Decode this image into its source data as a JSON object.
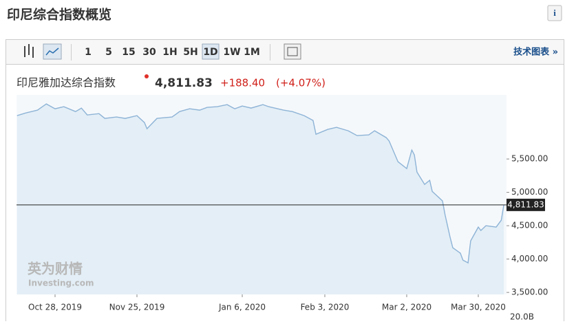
{
  "header": {
    "title": "印尼综合指数概览",
    "info_icon": "i"
  },
  "toolbar": {
    "intervals": [
      "1",
      "5",
      "15",
      "30",
      "1H",
      "5H",
      "1D",
      "1W",
      "1M"
    ],
    "link": "技术图表 »"
  },
  "quote": {
    "name": "印尼雅加达综合指数",
    "price": "4,811.83",
    "change": "+188.40",
    "change_pct": "(+4.07%)"
  },
  "watermark": {
    "brand": "英为财情",
    "site": "Investing.com"
  },
  "chart_data": {
    "type": "area-line",
    "color": "#8db3d6",
    "fill": "#e3eef6",
    "x": [
      "2019-10-15",
      "2019-10-18",
      "2019-10-22",
      "2019-10-25",
      "2019-10-28",
      "2019-10-31",
      "2019-11-04",
      "2019-11-06",
      "2019-11-08",
      "2019-11-12",
      "2019-11-14",
      "2019-11-18",
      "2019-11-21",
      "2019-11-25",
      "2019-11-28",
      "2019-11-29",
      "2019-12-03",
      "2019-12-09",
      "2019-12-12",
      "2019-12-16",
      "2019-12-20",
      "2019-12-23",
      "2019-12-27",
      "2019-12-31",
      "2020-01-03",
      "2020-01-06",
      "2020-01-09",
      "2020-01-13",
      "2020-01-15",
      "2020-01-20",
      "2020-01-23",
      "2020-01-27",
      "2020-01-30",
      "2020-01-31",
      "2020-02-04",
      "2020-02-07",
      "2020-02-11",
      "2020-02-14",
      "2020-02-18",
      "2020-02-20",
      "2020-02-24",
      "2020-02-25",
      "2020-02-28",
      "2020-03-02",
      "2020-03-04",
      "2020-03-05",
      "2020-03-06",
      "2020-03-09",
      "2020-03-11",
      "2020-03-12",
      "2020-03-16",
      "2020-03-17",
      "2020-03-19",
      "2020-03-20",
      "2020-03-23",
      "2020-03-24",
      "2020-03-26",
      "2020-03-27",
      "2020-03-30",
      "2020-03-31",
      "2020-04-02",
      "2020-04-06",
      "2020-04-08",
      "2020-04-09"
    ],
    "values": [
      6150,
      6190,
      6232,
      6325,
      6253,
      6284,
      6211,
      6263,
      6160,
      6180,
      6108,
      6129,
      6108,
      6150,
      6046,
      5954,
      6108,
      6129,
      6211,
      6253,
      6232,
      6273,
      6284,
      6315,
      6253,
      6294,
      6263,
      6315,
      6284,
      6232,
      6211,
      6150,
      6077,
      5871,
      5943,
      5974,
      5923,
      5851,
      5861,
      5923,
      5820,
      5768,
      5459,
      5356,
      5634,
      5562,
      5304,
      5119,
      5181,
      5015,
      4871,
      4665,
      4325,
      4170,
      4088,
      3985,
      3943,
      4273,
      4479,
      4428,
      4500,
      4479,
      4582,
      4811.83
    ],
    "ylim": [
      3470,
      6460
    ],
    "yticks": [
      {
        "value": 3500,
        "label": "3,500.00"
      },
      {
        "value": 4000,
        "label": "4,000.00"
      },
      {
        "value": 4500,
        "label": "4,500.00"
      },
      {
        "value": 5000,
        "label": "5,000.00"
      },
      {
        "value": 5500,
        "label": "5,500.00"
      }
    ],
    "xticks": [
      {
        "value": "2019-10-28",
        "label": "Oct 28, 2019"
      },
      {
        "value": "2019-11-25",
        "label": "Nov 25, 2019"
      },
      {
        "value": "2020-01-06",
        "label": "Jan 6, 2020"
      },
      {
        "value": "2020-02-03",
        "label": "Feb 3, 2020"
      },
      {
        "value": "2020-03-02",
        "label": "Mar 2, 2020"
      },
      {
        "value": "2020-03-30",
        "label": "Mar 30, 2020"
      }
    ],
    "last_price": {
      "value": 4811.83,
      "label": "4,811.83"
    },
    "volume_axis_label": "20.0B"
  }
}
